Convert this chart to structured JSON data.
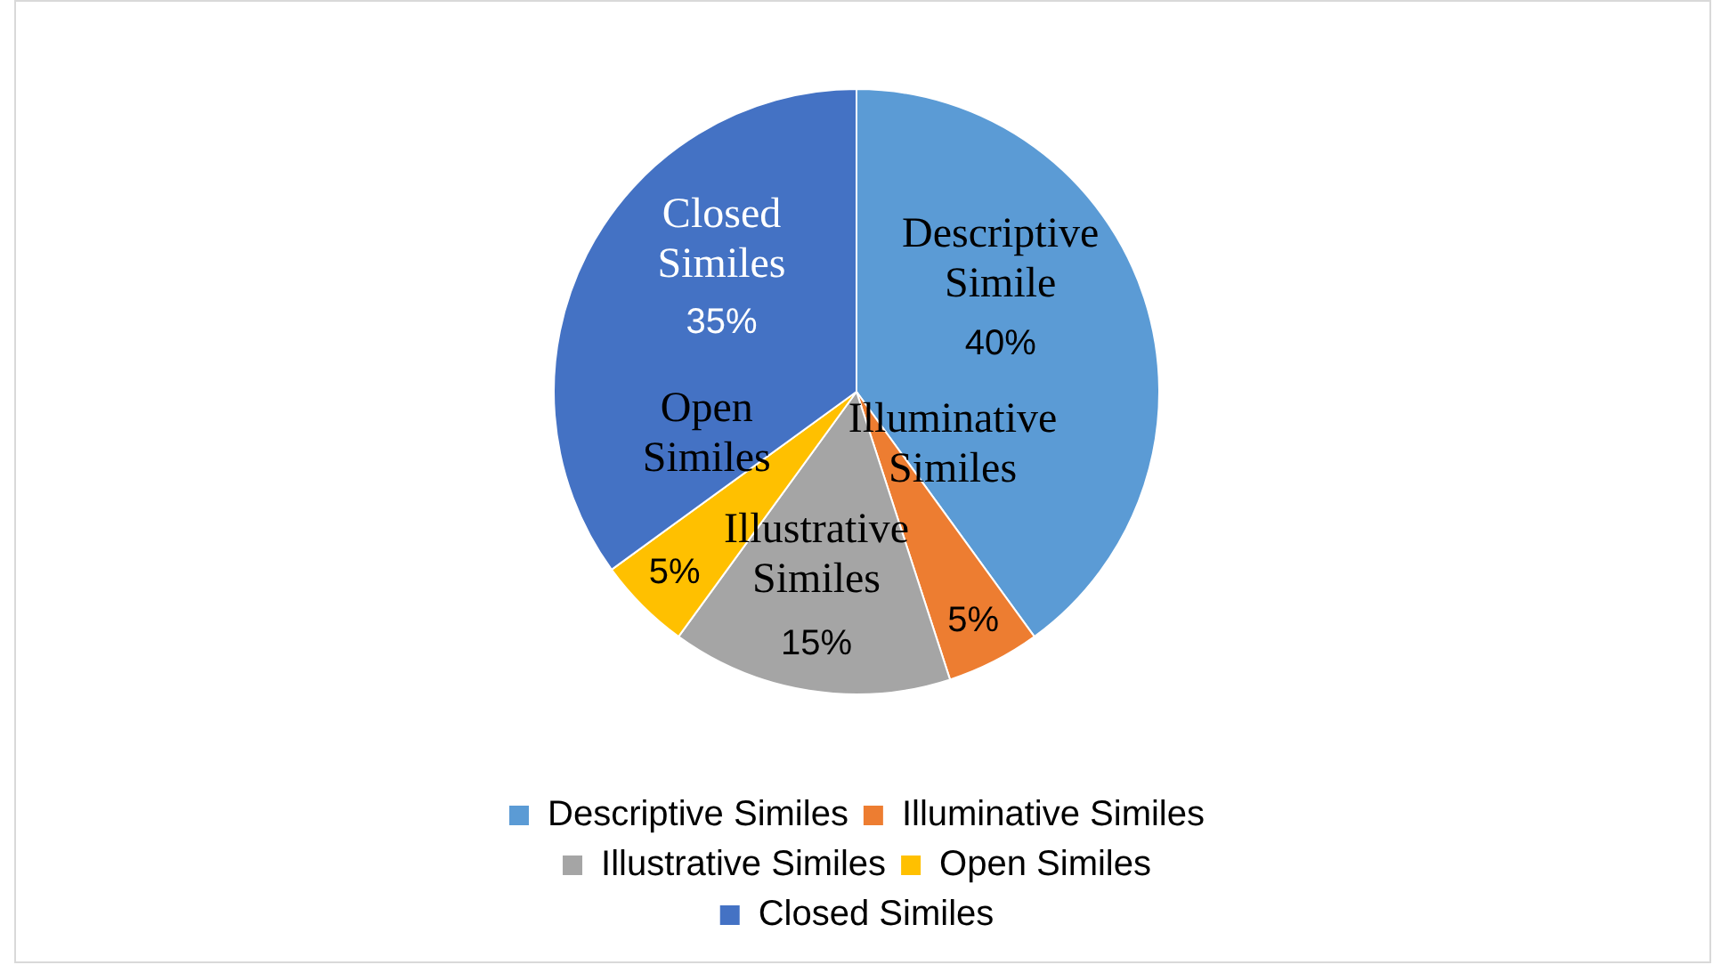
{
  "chart_data": {
    "type": "pie",
    "categories": [
      "Descriptive Similes",
      "Illuminative Similes",
      "Illustrative Similes",
      "Open Similes",
      "Closed Similes"
    ],
    "values": [
      40,
      5,
      15,
      5,
      35
    ],
    "colors": [
      "#5b9bd5",
      "#ed7d31",
      "#a5a5a5",
      "#ffc000",
      "#4472c4"
    ],
    "value_labels": [
      "40%",
      "5%",
      "15%",
      "5%",
      "35%"
    ],
    "annotations": [
      "Descriptive Simile",
      "Illuminative Similes",
      "Illustrative Similes",
      "Open Similes",
      "Closed Similes"
    ],
    "legend": "bottom"
  }
}
